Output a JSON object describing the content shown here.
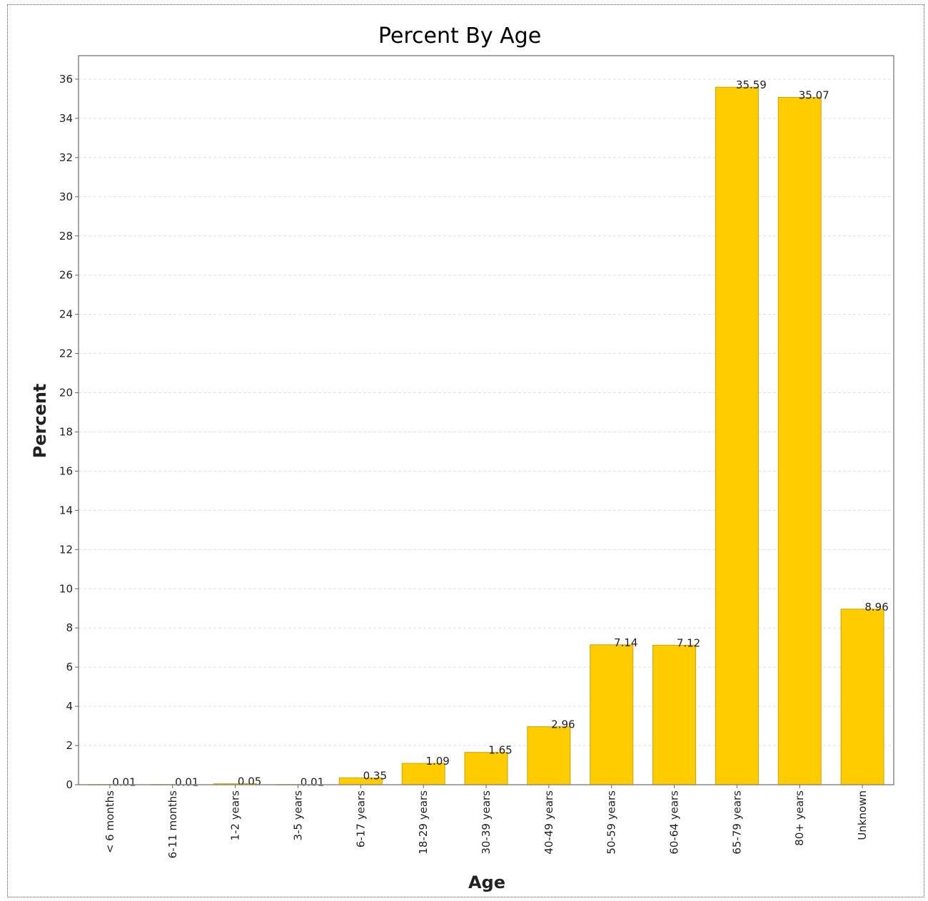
{
  "chart_data": {
    "type": "bar",
    "title": "Percent By Age",
    "xlabel": "Age",
    "ylabel": "Percent",
    "ylim": [
      0,
      37.2
    ],
    "yticks": [
      0,
      2,
      4,
      6,
      8,
      10,
      12,
      14,
      16,
      18,
      20,
      22,
      24,
      26,
      28,
      30,
      32,
      34,
      36
    ],
    "grid": true,
    "categories": [
      "< 6 months",
      "6-11 months",
      "1-2 years",
      "3-5 years",
      "6-17 years",
      "18-29 years",
      "30-39 years",
      "40-49 years",
      "50-59 years",
      "60-64 years",
      "65-79 years",
      "80+ years",
      "Unknown"
    ],
    "values": [
      0.01,
      0.01,
      0.05,
      0.01,
      0.35,
      1.09,
      1.65,
      2.96,
      7.14,
      7.12,
      35.59,
      35.07,
      8.96
    ],
    "value_labels": [
      "0.01",
      "0.01",
      "0.05",
      "0.01",
      "0.35",
      "1.09",
      "1.65",
      "2.96",
      "7.14",
      "7.12",
      "35.59",
      "35.07",
      "8.96"
    ],
    "colors": {
      "bar": "#FFCC00",
      "bar_edge": "#C9A400",
      "grid": "#E0E0E0",
      "plot_border": "#888888"
    }
  }
}
